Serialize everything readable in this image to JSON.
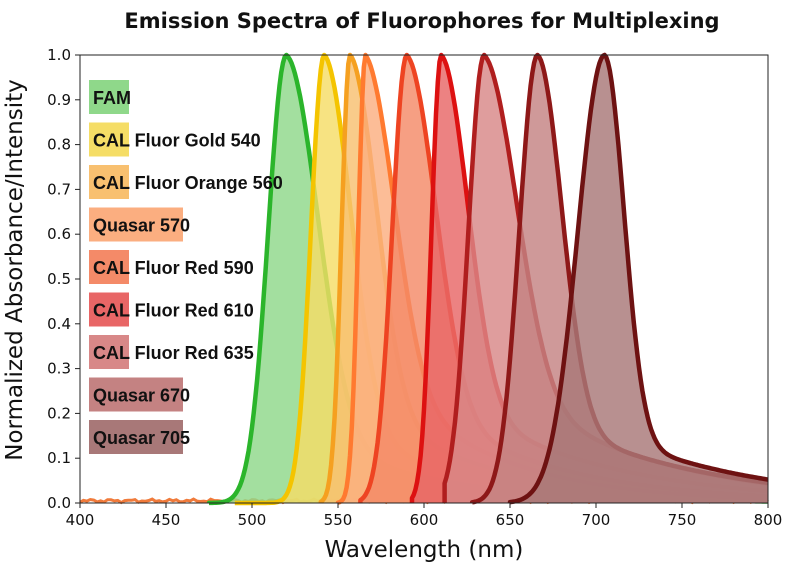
{
  "chart_data": {
    "type": "area",
    "title": "Emission Spectra of Fluorophores for Multiplexing",
    "xlabel": "Wavelength (nm)",
    "ylabel": "Normalized Absorbance/Intensity",
    "xlim": [
      400,
      800
    ],
    "ylim": [
      0,
      1.0
    ],
    "x_ticks": [
      "400",
      "450",
      "500",
      "550",
      "600",
      "650",
      "700",
      "750",
      "800"
    ],
    "y_ticks": [
      "0.0",
      "0.1",
      "0.2",
      "0.3",
      "0.4",
      "0.5",
      "0.6",
      "0.7",
      "0.8",
      "0.9",
      "1.0"
    ],
    "grid": false,
    "legend_position": "left",
    "series": [
      {
        "name": "FAM",
        "color": "#2bb52b",
        "fill": "#8fd88a",
        "start": 475,
        "peak": 520,
        "rise": 15,
        "fall": 26,
        "tail": 0.18,
        "taild": 70
      },
      {
        "name": "CAL Fluor Gold 540",
        "color": "#f4c400",
        "fill": "#f5dd66",
        "start": 490,
        "peak": 542,
        "rise": 11,
        "fall": 22,
        "tail": 0.2,
        "taild": 70
      },
      {
        "name": "CAL Fluor Orange 560",
        "color": "#f5a020",
        "fill": "#f8c070",
        "start": 540,
        "peak": 557,
        "rise": 7,
        "fall": 22,
        "tail": 0.25,
        "taild": 70
      },
      {
        "name": "Quasar 570",
        "color": "#ff7a30",
        "fill": "#fbae80",
        "start": 550,
        "peak": 566,
        "rise": 6,
        "fall": 24,
        "tail": 0.33,
        "taild": 65
      },
      {
        "name": "CAL Fluor Red 590",
        "color": "#ee4422",
        "fill": "#f48a68",
        "start": 563,
        "peak": 590,
        "rise": 12,
        "fall": 24,
        "tail": 0.25,
        "taild": 75
      },
      {
        "name": "CAL Fluor Red 610",
        "color": "#dd1111",
        "fill": "#e86666",
        "start": 593,
        "peak": 610,
        "rise": 8,
        "fall": 22,
        "tail": 0.25,
        "taild": 85
      },
      {
        "name": "CAL Fluor Red 635",
        "color": "#b01e1e",
        "fill": "#d88888",
        "start": 612,
        "peak": 635,
        "rise": 13,
        "fall": 27,
        "tail": 0.3,
        "taild": 85
      },
      {
        "name": "Quasar 670",
        "color": "#8e1818",
        "fill": "#c48282",
        "start": 628,
        "peak": 666,
        "rise": 15,
        "fall": 20,
        "tail": 0.2,
        "taild": 90
      },
      {
        "name": "Quasar 705",
        "color": "#6e1212",
        "fill": "#a87878",
        "start": 650,
        "peak": 705,
        "rise": 22,
        "fall": 16,
        "tail": 0.16,
        "taild": 85
      }
    ]
  }
}
